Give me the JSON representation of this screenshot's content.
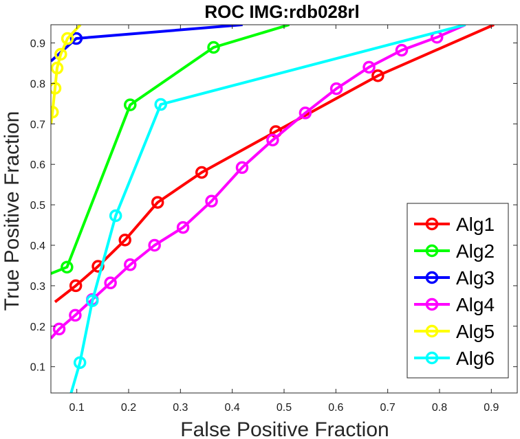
{
  "chart_data": {
    "type": "line",
    "title": "ROC  IMG:rdb028rl",
    "xlabel": "False Positive Fraction",
    "ylabel": "True Positive Fraction",
    "xlim": [
      0.05,
      0.95
    ],
    "ylim": [
      0.035,
      0.945
    ],
    "xticks": [
      0.1,
      0.2,
      0.3,
      0.4,
      0.5,
      0.6,
      0.7,
      0.8,
      0.9
    ],
    "yticks": [
      0.1,
      0.2,
      0.3,
      0.4,
      0.5,
      0.6,
      0.7,
      0.8,
      0.9
    ],
    "grid": false,
    "legend_position": "bottom-right",
    "series": [
      {
        "name": "Alg1",
        "color": "#ff0000",
        "points": [
          [
            0.058,
            0.26
          ],
          [
            0.098,
            0.3
          ],
          [
            0.141,
            0.348
          ],
          [
            0.193,
            0.413
          ],
          [
            0.256,
            0.506
          ],
          [
            0.341,
            0.58
          ],
          [
            0.484,
            0.681
          ],
          [
            0.681,
            0.819
          ],
          [
            0.905,
            0.945
          ]
        ]
      },
      {
        "name": "Alg2",
        "color": "#00ff00",
        "points": [
          [
            0.05,
            0.33
          ],
          [
            0.081,
            0.346
          ],
          [
            0.203,
            0.747
          ],
          [
            0.364,
            0.889
          ],
          [
            0.51,
            0.945
          ]
        ]
      },
      {
        "name": "Alg3",
        "color": "#0000ff",
        "points": [
          [
            0.05,
            0.855
          ],
          [
            0.099,
            0.911
          ],
          [
            0.42,
            0.945
          ]
        ]
      },
      {
        "name": "Alg4",
        "color": "#ff00ff",
        "points": [
          [
            0.05,
            0.17
          ],
          [
            0.066,
            0.193
          ],
          [
            0.097,
            0.227
          ],
          [
            0.13,
            0.266
          ],
          [
            0.165,
            0.307
          ],
          [
            0.203,
            0.352
          ],
          [
            0.25,
            0.4
          ],
          [
            0.305,
            0.444
          ],
          [
            0.36,
            0.509
          ],
          [
            0.419,
            0.592
          ],
          [
            0.478,
            0.66
          ],
          [
            0.541,
            0.727
          ],
          [
            0.601,
            0.787
          ],
          [
            0.664,
            0.84
          ],
          [
            0.727,
            0.882
          ],
          [
            0.795,
            0.914
          ],
          [
            0.85,
            0.945
          ]
        ]
      },
      {
        "name": "Alg5",
        "color": "#ffff00",
        "points": [
          [
            0.05,
            0.7
          ],
          [
            0.053,
            0.729
          ],
          [
            0.058,
            0.788
          ],
          [
            0.062,
            0.838
          ],
          [
            0.069,
            0.872
          ],
          [
            0.082,
            0.911
          ],
          [
            0.107,
            0.945
          ]
        ]
      },
      {
        "name": "Alg6",
        "color": "#00ffff",
        "points": [
          [
            0.089,
            0.035
          ],
          [
            0.106,
            0.11
          ],
          [
            0.13,
            0.263
          ],
          [
            0.175,
            0.473
          ],
          [
            0.262,
            0.748
          ],
          [
            0.85,
            0.945
          ]
        ]
      }
    ]
  }
}
